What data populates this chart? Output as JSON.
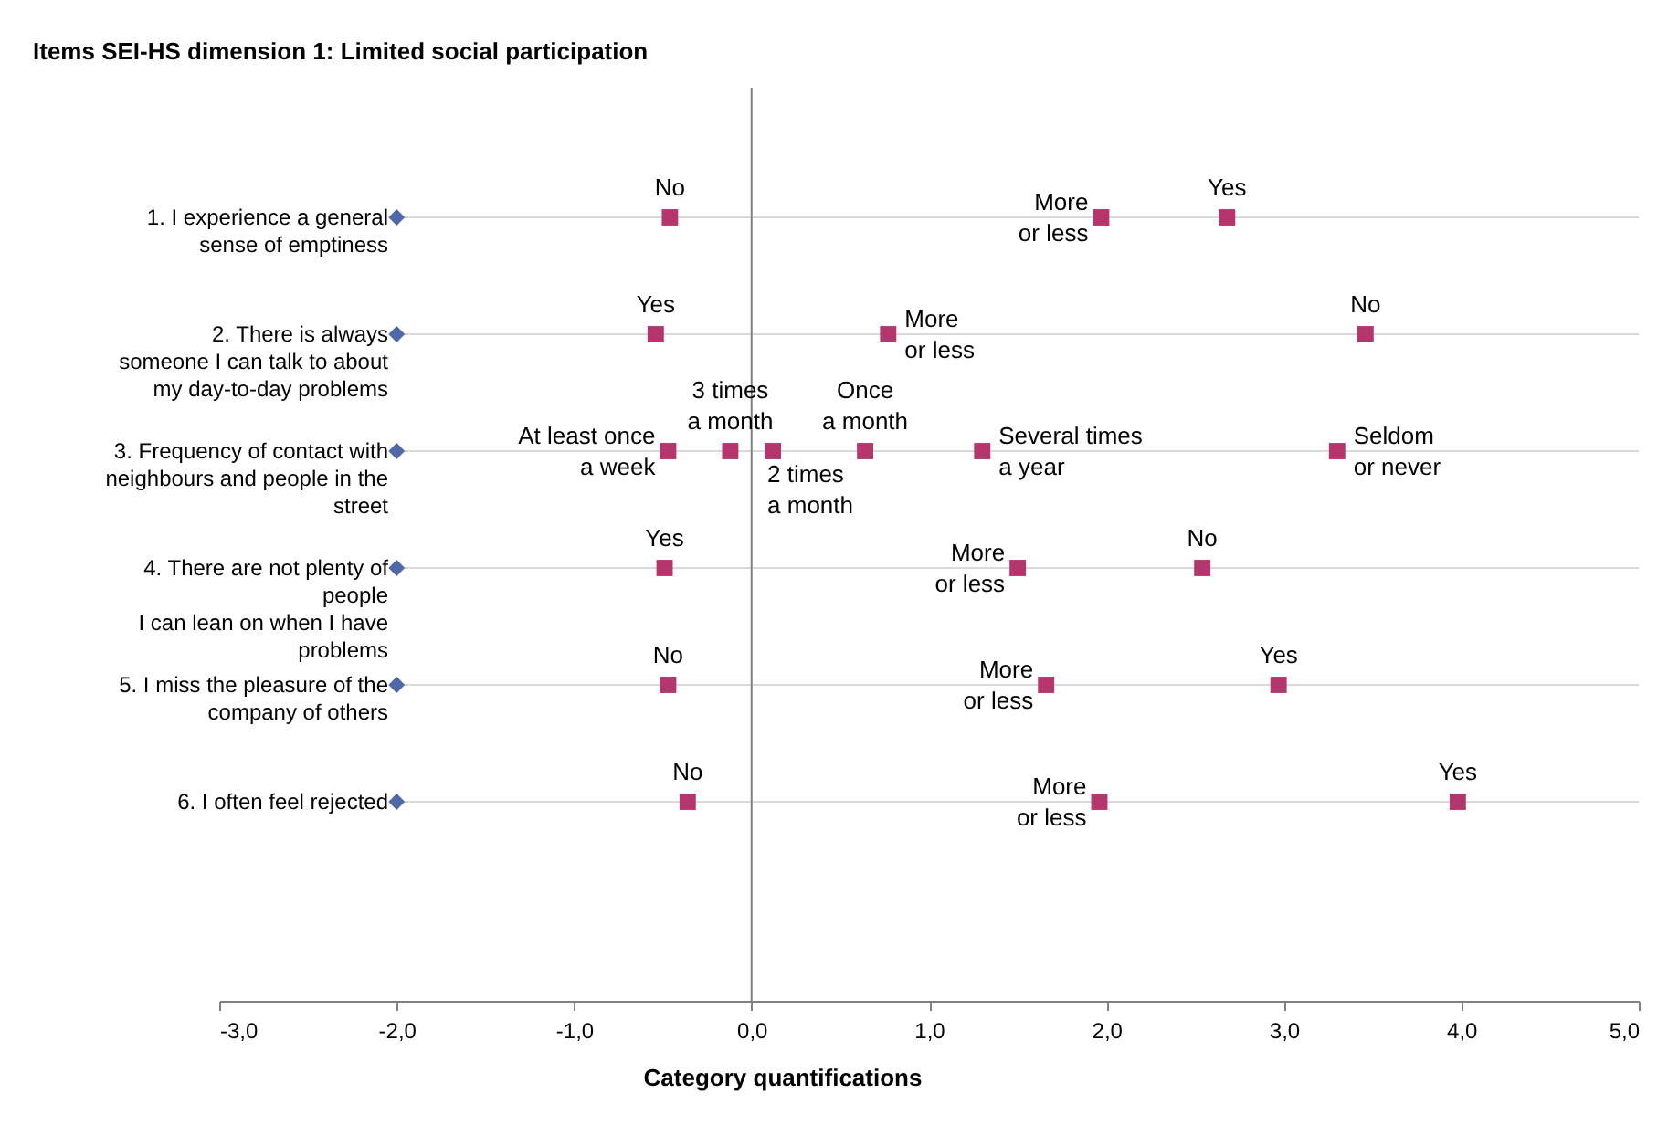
{
  "chart_data": {
    "type": "scatter",
    "orientation": "horizontal",
    "title": "Items SEI-HS dimension 1: Limited social participation",
    "xlabel": "Category quantifications",
    "categories": [
      "1. I experience a general\nsense of emptiness",
      "2. There is always\nsomeone I can talk to about\nmy day-to-day problems",
      "3. Frequency of contact with\nneighbours and people in the\nstreet",
      "4. There are not plenty of\npeople\nI can lean on when I have\nproblems",
      "5. I miss the pleasure of the\ncompany of others",
      "6. I often feel rejected"
    ],
    "series": [
      {
        "color": "#4f68a8",
        "marker": "diamond",
        "values": [
          -2,
          -2,
          -2,
          -2,
          -2,
          -2
        ]
      },
      {
        "color": "#b5366d",
        "marker": "square",
        "values": [
          -0.46,
          -0.54,
          -0.47,
          -0.49,
          -0.47,
          -0.36
        ],
        "value_labels": [
          "No",
          "Yes",
          "At least once\na week",
          "Yes",
          "No",
          "No"
        ]
      },
      {
        "color": "#b5366d",
        "marker": "square",
        "values": [
          1.97,
          0.77,
          -0.12,
          1.5,
          1.66,
          1.96
        ],
        "value_labels": [
          "More\nor less",
          "More\nor less",
          null,
          "More\nor less",
          "More\nor less",
          "More\nor less"
        ]
      },
      {
        "color": "#b5366d",
        "marker": "square",
        "values": [
          2.68,
          3.46,
          0.12,
          2.54,
          2.97,
          3.98
        ],
        "value_labels": [
          "Yes",
          "No",
          null,
          "No",
          "Yes",
          "Yes"
        ]
      },
      {
        "color": "#b5366d",
        "marker": "square",
        "values": [
          null,
          null,
          0.64,
          null,
          null,
          null
        ],
        "value_labels": [
          null,
          null,
          "Once\na month",
          null,
          null,
          null
        ]
      },
      {
        "color": "#b5366d",
        "marker": "square",
        "values": [
          null,
          null,
          1.3,
          null,
          null,
          null
        ],
        "value_labels": [
          null,
          null,
          "Several times\na year",
          null,
          null,
          null
        ]
      },
      {
        "color": "#b5366d",
        "marker": "square",
        "values": [
          null,
          null,
          3.3,
          null,
          null,
          null
        ],
        "value_labels": [
          null,
          null,
          "Seldom\nor never",
          null,
          null,
          null
        ]
      }
    ],
    "xlim": [
      -3,
      5
    ],
    "xticks": [
      {
        "value": -3,
        "label": "-3,0"
      },
      {
        "value": -2,
        "label": "-2,0"
      },
      {
        "value": -1,
        "label": "-1,0"
      },
      {
        "value": 0,
        "label": "0,0"
      },
      {
        "value": 1,
        "label": "1,0"
      },
      {
        "value": 2,
        "label": "2,0"
      },
      {
        "value": 3,
        "label": "3,0"
      },
      {
        "value": 4,
        "label": "4,0"
      },
      {
        "value": 5,
        "label": "5,0"
      }
    ],
    "ref_lines": [
      {
        "axis": "x",
        "value": 0,
        "color": "#808080"
      }
    ],
    "grid": "y",
    "annotations": [
      "3 times\na month",
      "2 times\na month"
    ]
  }
}
